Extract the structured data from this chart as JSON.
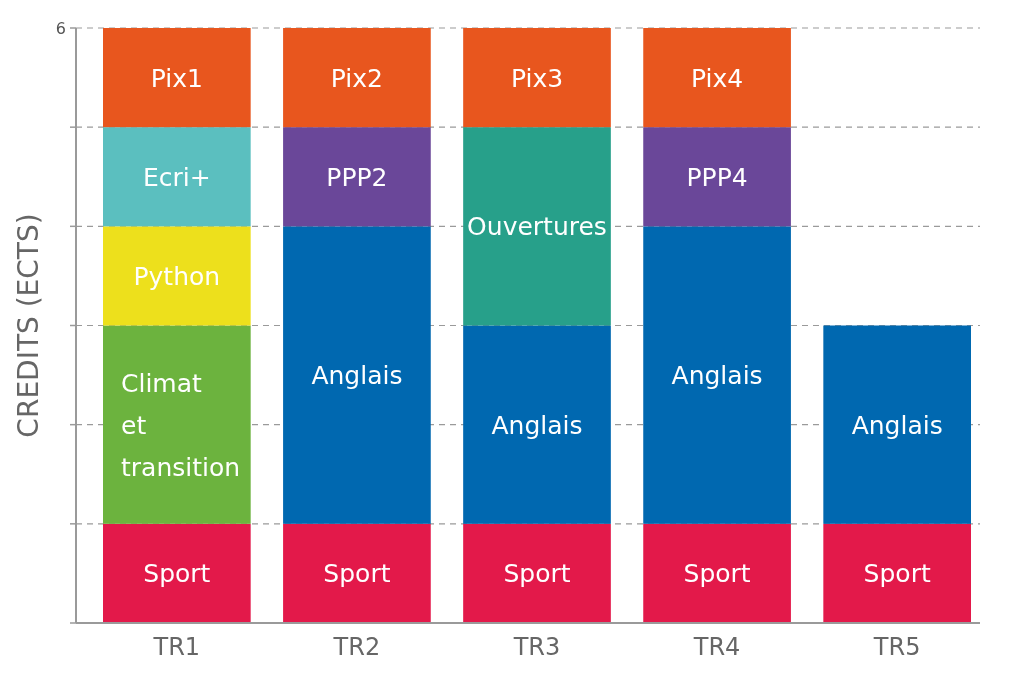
{
  "chart_data": {
    "type": "bar",
    "stacked": true,
    "ylabel": "CREDITS (ECTS)",
    "categories": [
      "TR1",
      "TR2",
      "TR3",
      "TR4",
      "TR5"
    ],
    "ylim": [
      0,
      6
    ],
    "yticks": [
      {
        "value": 0,
        "label": null
      },
      {
        "value": 1,
        "label": null
      },
      {
        "value": 2,
        "label": null
      },
      {
        "value": 3,
        "label": null
      },
      {
        "value": 4,
        "label": null
      },
      {
        "value": 5,
        "label": null
      },
      6
    ],
    "grid": "y",
    "series": [
      {
        "name": "Sport",
        "color": "#e3194a",
        "values": [
          1,
          1,
          1,
          1,
          1
        ]
      },
      {
        "name": "Climat et transition",
        "color": "#6cb33e",
        "values": [
          2,
          null,
          null,
          null,
          null
        ]
      },
      {
        "name": "Anglais",
        "color": "#0068b0",
        "values": [
          null,
          3,
          2,
          3,
          2
        ]
      },
      {
        "name": "Python",
        "color": "#ede01c",
        "values": [
          1,
          null,
          null,
          null,
          null
        ]
      },
      {
        "name": "Ouvertures",
        "color": "#27a08a",
        "values": [
          null,
          null,
          2,
          null,
          null
        ]
      },
      {
        "name": "Ecri+",
        "color": "#5bbfbf",
        "values": [
          1,
          null,
          null,
          null,
          null
        ]
      },
      {
        "name": "PPP2",
        "color": "#6a4799",
        "values": [
          null,
          1,
          null,
          null,
          null
        ]
      },
      {
        "name": "PPP4",
        "color": "#6a4799",
        "values": [
          null,
          null,
          null,
          1,
          null
        ]
      },
      {
        "name": "Pix1",
        "color": "#e8561e",
        "values": [
          1,
          null,
          null,
          null,
          null
        ]
      },
      {
        "name": "Pix2",
        "color": "#e8561e",
        "values": [
          null,
          1,
          null,
          null,
          null
        ]
      },
      {
        "name": "Pix3",
        "color": "#e8561e",
        "values": [
          null,
          null,
          1,
          null,
          null
        ]
      },
      {
        "name": "Pix4",
        "color": "#e8561e",
        "values": [
          null,
          null,
          null,
          1,
          null
        ]
      }
    ]
  }
}
